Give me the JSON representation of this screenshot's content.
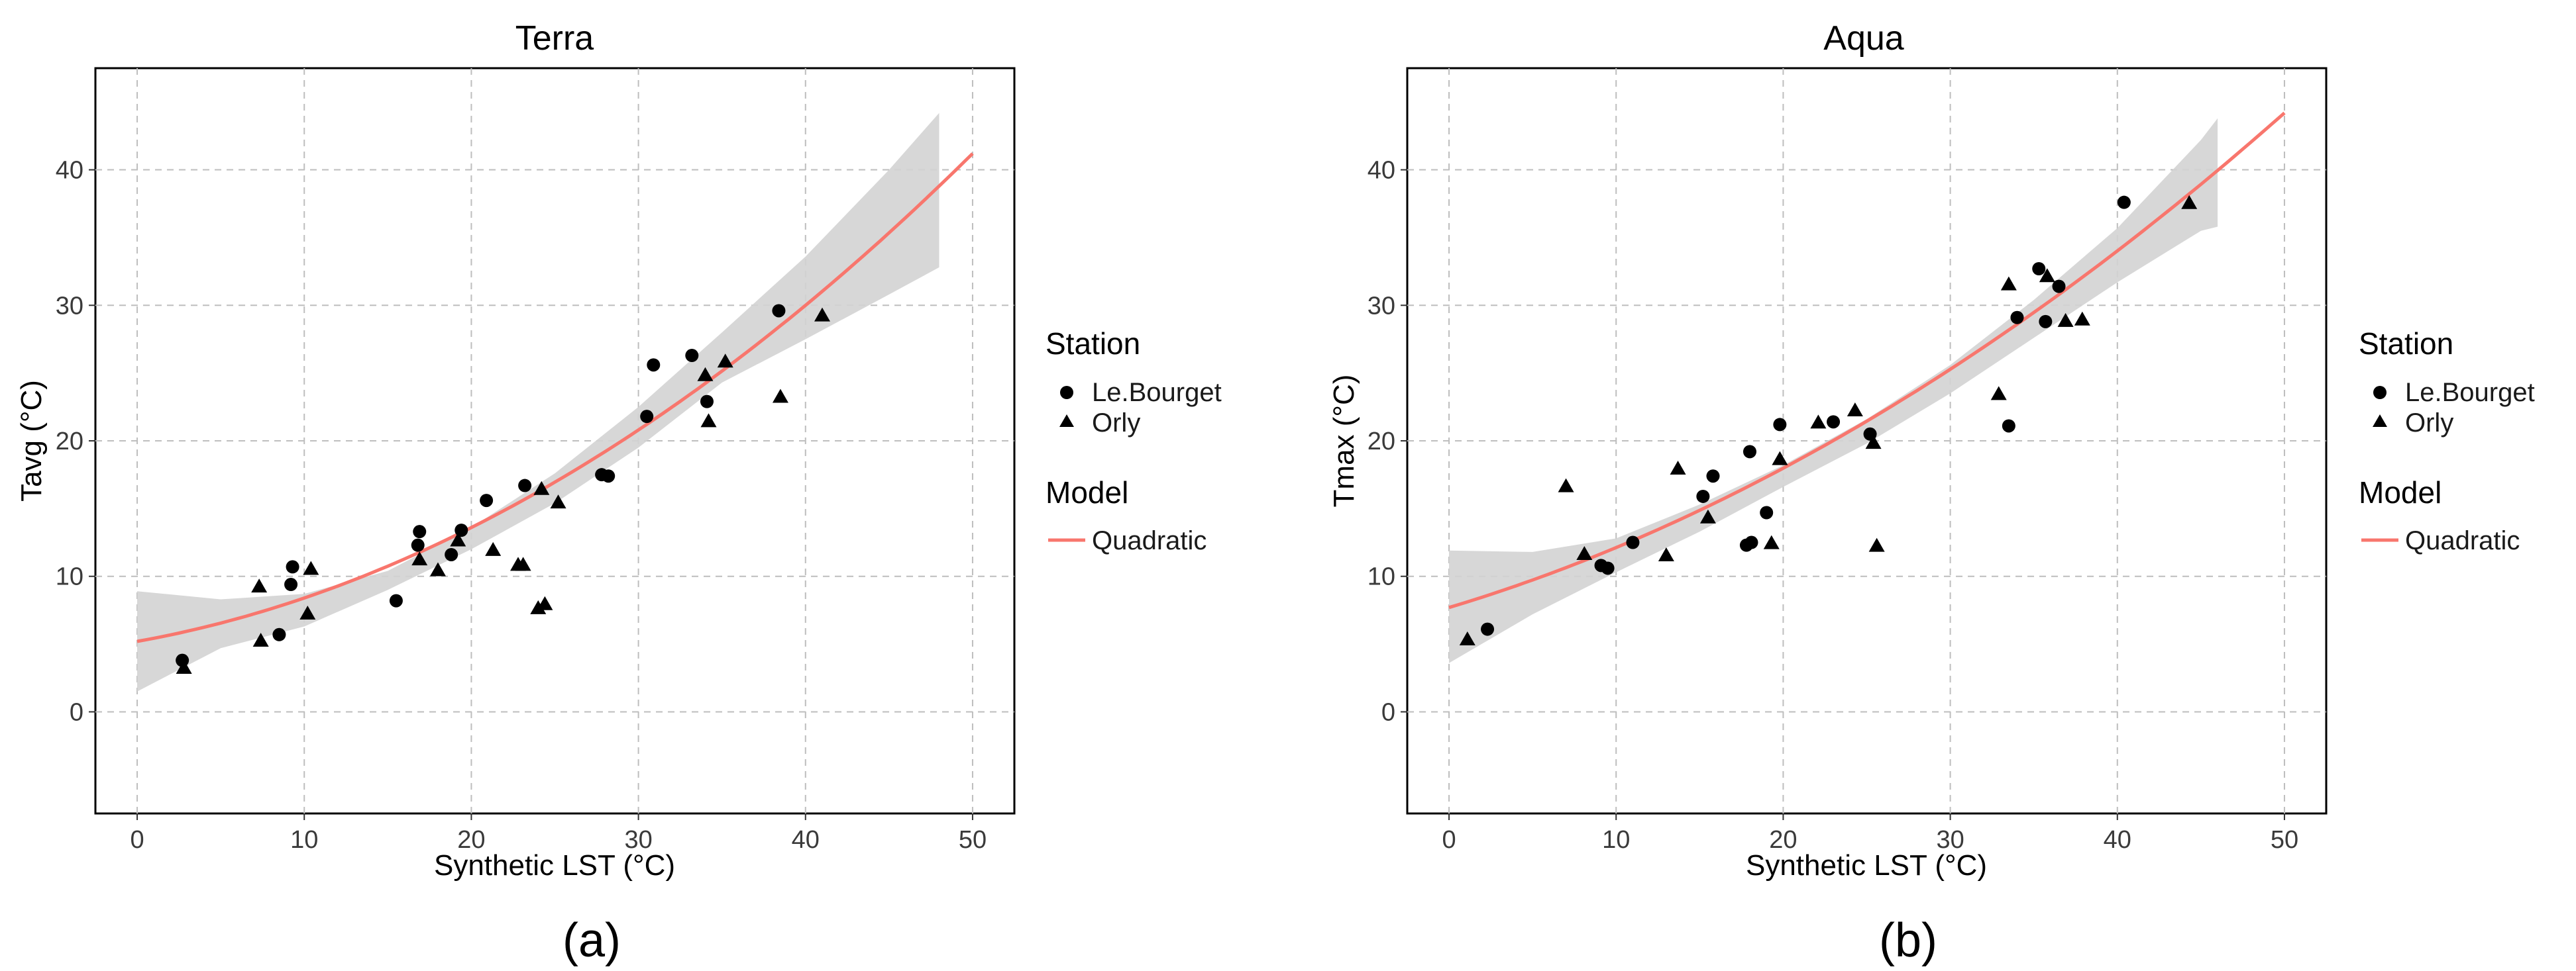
{
  "figure": {
    "captions": [
      "(a)",
      "(b)"
    ]
  },
  "colors": {
    "fit_line": "#F8766D",
    "confidence_band": "#D3D3D3",
    "grid": "#BEBEBE",
    "points": "#000000"
  },
  "legend": {
    "station_title": "Station",
    "station_items": [
      {
        "label": "Le.Bourget",
        "shape": "circle"
      },
      {
        "label": "Orly",
        "shape": "triangle"
      }
    ],
    "model_title": "Model",
    "model_items": [
      {
        "label": "Quadratic",
        "shape": "line"
      }
    ]
  },
  "chart_data": [
    {
      "type": "scatter",
      "title": "Terra",
      "xlabel": "Synthetic LST (°C)",
      "ylabel": "Tavg (°C)",
      "xlim": [
        -2.5,
        52.5
      ],
      "ylim": [
        -7.5,
        47.5
      ],
      "xticks": [
        0,
        10,
        20,
        30,
        40,
        50
      ],
      "yticks": [
        0,
        10,
        20,
        30,
        40
      ],
      "grid": true,
      "series": [
        {
          "name": "Le.Bourget",
          "marker": "circle",
          "points": [
            [
              2.7,
              3.8
            ],
            [
              8.5,
              5.7
            ],
            [
              9.2,
              9.4
            ],
            [
              9.3,
              10.7
            ],
            [
              15.5,
              8.2
            ],
            [
              16.8,
              12.3
            ],
            [
              16.9,
              13.3
            ],
            [
              18.8,
              11.6
            ],
            [
              19.4,
              13.4
            ],
            [
              20.9,
              15.6
            ],
            [
              23.2,
              16.7
            ],
            [
              27.8,
              17.5
            ],
            [
              28.2,
              17.4
            ],
            [
              30.5,
              21.8
            ],
            [
              30.9,
              25.6
            ],
            [
              33.2,
              26.3
            ],
            [
              34.1,
              22.9
            ],
            [
              38.4,
              29.6
            ]
          ]
        },
        {
          "name": "Orly",
          "marker": "triangle",
          "points": [
            [
              2.8,
              3.2
            ],
            [
              7.3,
              9.2
            ],
            [
              7.4,
              5.2
            ],
            [
              10.2,
              7.2
            ],
            [
              10.4,
              10.5
            ],
            [
              16.9,
              11.2
            ],
            [
              18.0,
              10.4
            ],
            [
              19.2,
              12.6
            ],
            [
              21.3,
              11.9
            ],
            [
              22.8,
              10.8
            ],
            [
              23.1,
              10.8
            ],
            [
              24.0,
              7.6
            ],
            [
              24.2,
              16.4
            ],
            [
              24.4,
              7.9
            ],
            [
              25.2,
              15.4
            ],
            [
              34.0,
              24.8
            ],
            [
              34.2,
              21.4
            ],
            [
              35.2,
              25.8
            ],
            [
              38.5,
              23.2
            ],
            [
              41.0,
              29.2
            ]
          ]
        }
      ],
      "fit": {
        "name": "Quadratic",
        "coefficients": [
          5.2,
          0.22,
          0.01
        ],
        "x_range": [
          0,
          50
        ]
      },
      "confidence_band": {
        "x": [
          0,
          5,
          10,
          15,
          20,
          25,
          30,
          35,
          40,
          45,
          48
        ],
        "lower": [
          1.5,
          4.7,
          6.3,
          9.0,
          12.0,
          15.4,
          19.5,
          24.3,
          27.5,
          30.8,
          32.8
        ],
        "upper": [
          8.9,
          8.3,
          8.7,
          10.4,
          13.6,
          17.6,
          22.5,
          28.0,
          33.6,
          40.0,
          44.2
        ]
      }
    },
    {
      "type": "scatter",
      "title": "Aqua",
      "xlabel": "Synthetic LST (°C)",
      "ylabel": "Tmax (°C)",
      "xlim": [
        -2.5,
        52.5
      ],
      "ylim": [
        -7.5,
        47.5
      ],
      "xticks": [
        0,
        10,
        20,
        30,
        40,
        50
      ],
      "yticks": [
        0,
        10,
        20,
        30,
        40
      ],
      "grid": true,
      "series": [
        {
          "name": "Le.Bourget",
          "marker": "circle",
          "points": [
            [
              2.3,
              6.1
            ],
            [
              9.1,
              10.8
            ],
            [
              9.5,
              10.6
            ],
            [
              11.0,
              12.5
            ],
            [
              15.2,
              15.9
            ],
            [
              15.8,
              17.4
            ],
            [
              17.8,
              12.3
            ],
            [
              18.0,
              19.2
            ],
            [
              18.1,
              12.5
            ],
            [
              19.0,
              14.7
            ],
            [
              19.8,
              21.2
            ],
            [
              23.0,
              21.4
            ],
            [
              25.2,
              20.5
            ],
            [
              34.0,
              29.1
            ],
            [
              33.5,
              21.1
            ],
            [
              35.3,
              32.7
            ],
            [
              35.7,
              28.8
            ],
            [
              36.5,
              31.4
            ],
            [
              40.4,
              37.6
            ]
          ]
        },
        {
          "name": "Orly",
          "marker": "triangle",
          "points": [
            [
              1.1,
              5.3
            ],
            [
              7.0,
              16.6
            ],
            [
              8.1,
              11.6
            ],
            [
              13.0,
              11.5
            ],
            [
              13.7,
              17.9
            ],
            [
              15.5,
              14.3
            ],
            [
              19.3,
              12.4
            ],
            [
              19.8,
              18.6
            ],
            [
              22.1,
              21.3
            ],
            [
              24.3,
              22.2
            ],
            [
              25.4,
              19.8
            ],
            [
              25.6,
              12.2
            ],
            [
              32.9,
              23.4
            ],
            [
              33.5,
              31.5
            ],
            [
              35.8,
              32.1
            ],
            [
              36.9,
              28.8
            ],
            [
              37.9,
              28.9
            ],
            [
              44.3,
              37.5
            ]
          ]
        }
      ],
      "fit": {
        "name": "Quadratic",
        "coefficients": [
          7.7,
          0.37,
          0.0072
        ],
        "x_range": [
          0,
          50
        ]
      },
      "confidence_band": {
        "x": [
          0,
          5,
          10,
          15,
          20,
          25,
          30,
          35,
          40,
          45,
          46
        ],
        "lower": [
          3.6,
          7.2,
          10.3,
          13.3,
          16.6,
          19.8,
          23.5,
          27.6,
          31.7,
          35.5,
          35.8
        ],
        "upper": [
          11.9,
          11.8,
          12.8,
          15.3,
          18.2,
          21.6,
          25.6,
          30.4,
          35.7,
          42.2,
          43.8
        ]
      }
    }
  ]
}
